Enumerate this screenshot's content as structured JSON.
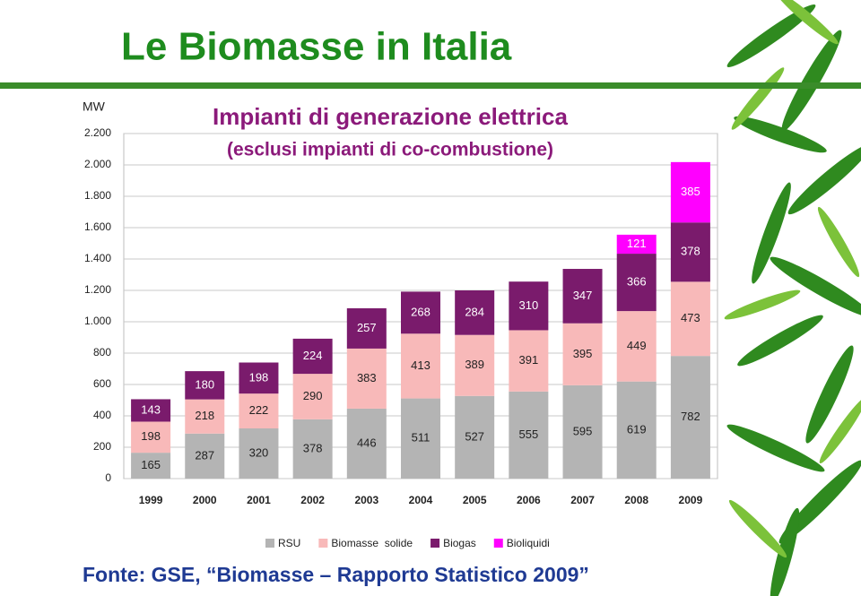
{
  "header": {
    "title": "Le Biomasse in Italia"
  },
  "chart_data": {
    "type": "stacked_bar",
    "title": "Impianti di generazione elettrica",
    "subtitle": "(esclusi impianti di co-combustione)",
    "y_label": "MW",
    "categories": [
      "1999",
      "2000",
      "2001",
      "2002",
      "2003",
      "2004",
      "2005",
      "2006",
      "2007",
      "2008",
      "2009"
    ],
    "series": [
      {
        "name": "RSU",
        "color": "#b4b4b4",
        "label_color": "#222222",
        "values": [
          165,
          287,
          320,
          378,
          446,
          511,
          527,
          555,
          595,
          619,
          782
        ]
      },
      {
        "name": "Biomasse  solide",
        "color": "#f8b9b9",
        "label_color": "#222222",
        "values": [
          198,
          218,
          222,
          290,
          383,
          413,
          389,
          391,
          395,
          449,
          473
        ]
      },
      {
        "name": "Biogas",
        "color": "#7a1b6c",
        "label_color": "#ffffff",
        "values": [
          143,
          180,
          198,
          224,
          257,
          268,
          284,
          310,
          347,
          366,
          378
        ]
      },
      {
        "name": "Bioliquidi",
        "color": "#ff00ff",
        "label_color": "#ffffff",
        "values": [
          null,
          null,
          null,
          null,
          null,
          null,
          null,
          null,
          null,
          121,
          385
        ]
      }
    ],
    "ylim": [
      0,
      2200
    ],
    "yticks": [
      0,
      200,
      400,
      600,
      800,
      {
        "value": 1000,
        "label": "1.000"
      },
      {
        "value": 1200,
        "label": "1.200"
      },
      {
        "value": 1400,
        "label": "1.400"
      },
      {
        "value": 1600,
        "label": "1.600"
      },
      {
        "value": 1800,
        "label": "1.800"
      },
      {
        "value": 2000,
        "label": "2.000"
      },
      {
        "value": 2200,
        "label": "2.200"
      }
    ],
    "grid": true,
    "legend": "bottom"
  },
  "footer": {
    "source": "Fonte: GSE, “Biomasse – Rapporto Statistico 2009”"
  }
}
